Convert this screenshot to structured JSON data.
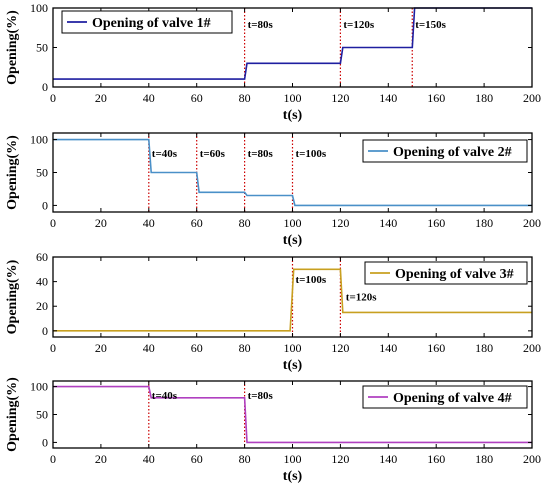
{
  "chart_data": [
    {
      "type": "line",
      "legend": "Opening of valve 1#",
      "legend_position": "top-left",
      "color": "#1f1fa0",
      "xlabel": "t(s)",
      "ylabel": "Opening(%)",
      "xlim": [
        0,
        200
      ],
      "ylim": [
        0,
        100
      ],
      "xticks": [
        0,
        20,
        40,
        60,
        80,
        100,
        120,
        140,
        160,
        180,
        200
      ],
      "yticks": [
        0,
        50,
        100
      ],
      "x": [
        0,
        80,
        81,
        120,
        121,
        150,
        151,
        200
      ],
      "y": [
        10,
        10,
        30,
        30,
        50,
        50,
        100,
        100
      ],
      "vlines": [
        80,
        120,
        150
      ],
      "annotations": [
        {
          "text": "t=80s",
          "x": 80,
          "y": 80
        },
        {
          "text": "t=120s",
          "x": 120,
          "y": 80
        },
        {
          "text": "t=150s",
          "x": 150,
          "y": 80
        }
      ]
    },
    {
      "type": "line",
      "legend": "Opening of valve 2#",
      "legend_position": "top-right",
      "color": "#4a90c8",
      "xlabel": "t(s)",
      "ylabel": "Opening(%)",
      "xlim": [
        0,
        200
      ],
      "ylim": [
        -10,
        110
      ],
      "xticks": [
        0,
        20,
        40,
        60,
        80,
        100,
        120,
        140,
        160,
        180,
        200
      ],
      "yticks": [
        0,
        50,
        100
      ],
      "x": [
        0,
        40,
        41,
        60,
        61,
        80,
        81,
        100,
        101,
        200
      ],
      "y": [
        100,
        100,
        50,
        50,
        20,
        20,
        15,
        15,
        0,
        0
      ],
      "vlines": [
        40,
        60,
        80,
        100
      ],
      "annotations": [
        {
          "text": "t=40s",
          "x": 40,
          "y": 80
        },
        {
          "text": "t=60s",
          "x": 60,
          "y": 80
        },
        {
          "text": "t=80s",
          "x": 80,
          "y": 80
        },
        {
          "text": "t=100s",
          "x": 100,
          "y": 80
        }
      ]
    },
    {
      "type": "line",
      "legend": "Opening of valve 3#",
      "legend_position": "top-right",
      "color": "#c8a020",
      "xlabel": "t(s)",
      "ylabel": "Opening(%)",
      "xlim": [
        0,
        200
      ],
      "ylim": [
        -5,
        60
      ],
      "xticks": [
        0,
        20,
        40,
        60,
        80,
        100,
        120,
        140,
        160,
        180,
        200
      ],
      "yticks": [
        0,
        20,
        40,
        60
      ],
      "x": [
        0,
        99,
        100.5,
        120,
        121,
        200
      ],
      "y": [
        0,
        0,
        50,
        50,
        15,
        15
      ],
      "vlines": [
        100,
        120
      ],
      "annotations": [
        {
          "text": "t=100s",
          "x": 100,
          "y": 42
        },
        {
          "text": "t=120s",
          "x": 121,
          "y": 28
        }
      ]
    },
    {
      "type": "line",
      "legend": "Opening of valve 4#",
      "legend_position": "top-right",
      "color": "#b040c0",
      "xlabel": "t(s)",
      "ylabel": "Opening(%)",
      "xlim": [
        0,
        200
      ],
      "ylim": [
        -10,
        110
      ],
      "xticks": [
        0,
        20,
        40,
        60,
        80,
        100,
        120,
        140,
        160,
        180,
        200
      ],
      "yticks": [
        0,
        50,
        100
      ],
      "x": [
        0,
        40,
        41,
        80,
        81,
        200
      ],
      "y": [
        100,
        100,
        80,
        80,
        0,
        0
      ],
      "vlines": [
        40,
        80
      ],
      "annotations": [
        {
          "text": "t=40s",
          "x": 40,
          "y": 85
        },
        {
          "text": "t=80s",
          "x": 80,
          "y": 85
        }
      ]
    }
  ],
  "vline_color": "#cc0000"
}
